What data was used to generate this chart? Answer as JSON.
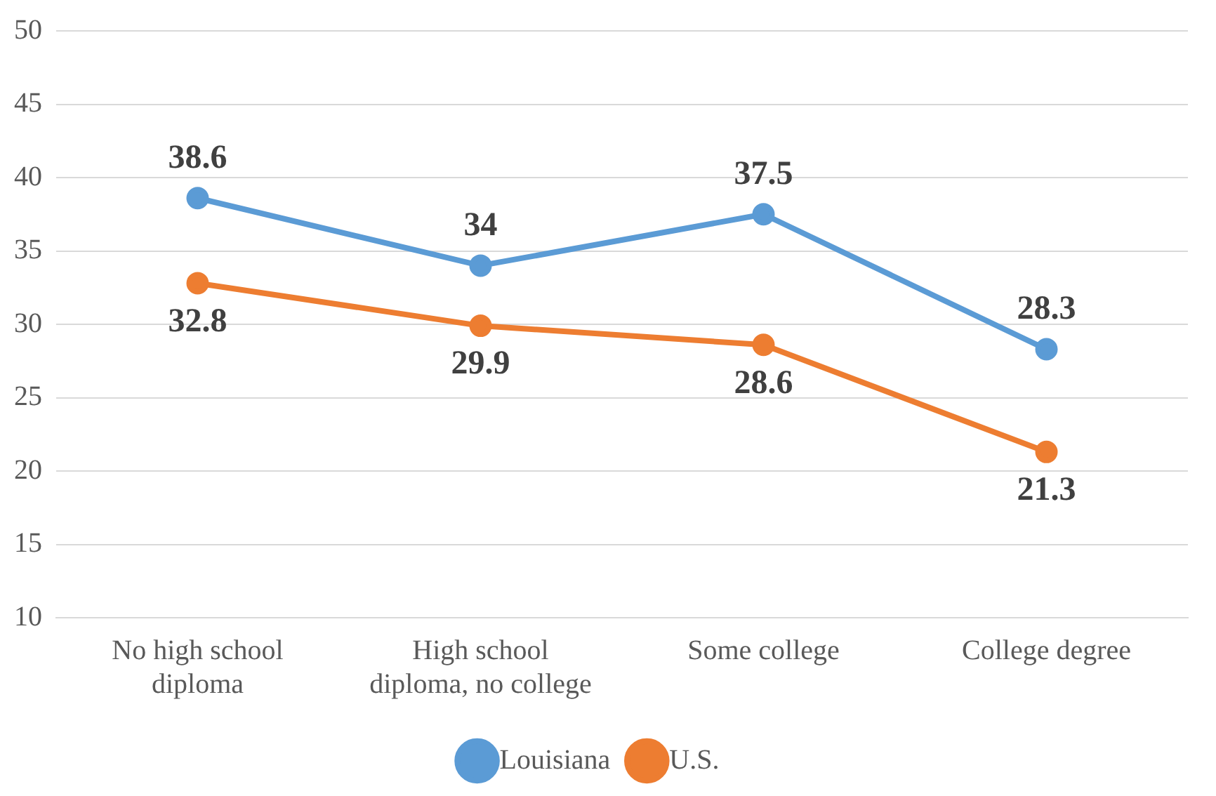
{
  "chart_data": {
    "type": "line",
    "categories": [
      "No high school diploma",
      "High school diploma, no college",
      "Some college",
      "College degree"
    ],
    "series": [
      {
        "name": "Louisiana",
        "color": "#5b9bd5",
        "values": [
          38.6,
          34,
          37.5,
          28.3
        ]
      },
      {
        "name": "U.S.",
        "color": "#ed7d31",
        "values": [
          32.8,
          29.9,
          28.6,
          21.3
        ]
      }
    ],
    "ylim": [
      10,
      50
    ],
    "yticks": [
      10,
      15,
      20,
      25,
      30,
      35,
      40,
      45,
      50
    ],
    "grid": "y",
    "legend": "bottom",
    "marker": "circle",
    "line_style": "solid",
    "data_labels": true
  }
}
